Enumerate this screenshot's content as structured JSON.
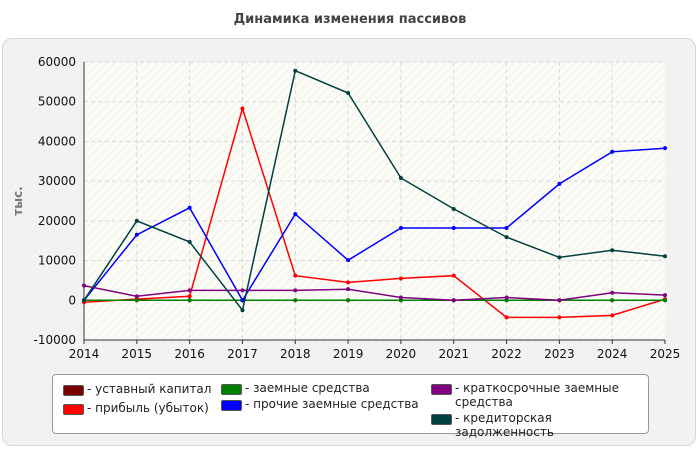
{
  "chart_data": {
    "type": "line",
    "title": "Динамика изменения пассивов",
    "xlabel": "",
    "ylabel": "тыс.",
    "x": [
      2014,
      2015,
      2016,
      2017,
      2018,
      2019,
      2020,
      2021,
      2022,
      2023,
      2024,
      2025
    ],
    "ylim": [
      -10000,
      60000
    ],
    "yticks": [
      -10000,
      0,
      10000,
      20000,
      30000,
      40000,
      50000,
      60000
    ],
    "grid": true,
    "legend_position": "bottom",
    "series": [
      {
        "name": "- уставный капитал",
        "color": "#7a0000",
        "values": [
          0,
          0,
          0,
          0,
          0,
          0,
          0,
          0,
          0,
          0,
          0,
          0
        ]
      },
      {
        "name": "- прибыль (убыток)",
        "color": "#ff0000",
        "values": [
          -500,
          300,
          1000,
          48300,
          6200,
          4500,
          5500,
          6200,
          -4300,
          -4300,
          -3800,
          300
        ]
      },
      {
        "name": "- заемные средства",
        "color": "#008000",
        "values": [
          0,
          0,
          0,
          0,
          0,
          0,
          0,
          0,
          0,
          0,
          0,
          0
        ]
      },
      {
        "name": "- прочие заемные средства",
        "color": "#0000ff",
        "values": [
          0,
          16500,
          23300,
          0,
          21700,
          10100,
          18200,
          18200,
          18200,
          29300,
          37400,
          38300
        ]
      },
      {
        "name": "- краткосрочные заемные средства",
        "color": "#800080",
        "values": [
          3700,
          1000,
          2500,
          2500,
          2500,
          2800,
          700,
          0,
          700,
          0,
          1900,
          1300
        ]
      },
      {
        "name": "- кредиторская задолженность",
        "color": "#004040",
        "values": [
          0,
          20000,
          14700,
          -2500,
          57800,
          52200,
          30800,
          23000,
          15900,
          10800,
          12600,
          11100
        ]
      }
    ]
  }
}
